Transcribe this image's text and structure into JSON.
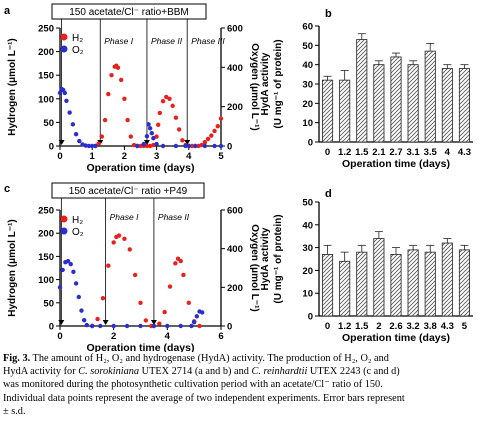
{
  "chart_data": [
    {
      "panel": "a",
      "type": "line",
      "banner": "150 acetate/Cl⁻ ratio+BBM",
      "xlabel": "Operation time (days)",
      "ylabel": "Hydrogen (μmol L⁻¹)",
      "ylabel2": "Oxygen (μmol L⁻¹)",
      "xlim": [
        0,
        5
      ],
      "ylim": [
        0,
        250
      ],
      "ylim2": [
        0,
        600
      ],
      "xticks": [
        "0",
        "1",
        "2",
        "3",
        "4",
        "5"
      ],
      "yticks": [
        "0",
        "50",
        "100",
        "150",
        "200",
        "250"
      ],
      "yticks2": [
        "0",
        "200",
        "400",
        "600"
      ],
      "phases": [
        {
          "x": 0.05,
          "label": ""
        },
        {
          "x": 1.25,
          "label": "Phase I"
        },
        {
          "x": 2.7,
          "label": "Phase II"
        },
        {
          "x": 3.95,
          "label": "Phase III"
        }
      ],
      "legend": [
        {
          "label": "H₂",
          "color": "#e8211c"
        },
        {
          "label": "O₂",
          "color": "#2a2fcc"
        }
      ],
      "series": [
        {
          "name": "H₂",
          "axis": "left",
          "color": "#e8211c",
          "x": [
            1.1,
            1.2,
            1.3,
            1.4,
            1.5,
            1.6,
            1.7,
            1.75,
            1.8,
            1.9,
            2.0,
            2.1,
            2.2,
            2.3,
            2.4,
            2.5,
            2.6,
            2.7,
            2.8,
            2.9,
            3.0,
            3.05,
            3.1,
            3.2,
            3.3,
            3.4,
            3.5,
            3.6,
            3.7,
            3.8,
            3.9,
            4.0,
            4.1,
            4.2,
            4.3,
            4.4,
            4.5,
            4.6,
            4.7,
            4.8,
            4.9,
            5.0
          ],
          "y": [
            0,
            5,
            20,
            55,
            110,
            150,
            168,
            170,
            166,
            140,
            100,
            55,
            20,
            2,
            0,
            0,
            0,
            0,
            0,
            2,
            20,
            45,
            70,
            95,
            104,
            100,
            85,
            60,
            35,
            12,
            2,
            0,
            0,
            0,
            0,
            2,
            8,
            15,
            22,
            32,
            42,
            58
          ]
        },
        {
          "name": "O₂",
          "axis": "right",
          "color": "#2a2fcc",
          "x": [
            0,
            0.05,
            0.1,
            0.15,
            0.2,
            0.3,
            0.4,
            0.5,
            0.6,
            0.7,
            0.8,
            0.9,
            1.0,
            1.1,
            2.4,
            2.6,
            2.7,
            2.75,
            2.8,
            2.85,
            2.9,
            3.0,
            3.2,
            3.6,
            3.9,
            4.0,
            4.2,
            4.5,
            4.8,
            5.0
          ],
          "y": [
            270,
            290,
            285,
            270,
            230,
            170,
            110,
            60,
            25,
            8,
            2,
            0,
            0,
            0,
            0,
            10,
            50,
            110,
            90,
            65,
            40,
            10,
            0,
            0,
            0,
            0,
            0,
            0,
            0,
            0
          ]
        }
      ]
    },
    {
      "panel": "b",
      "type": "bar",
      "xlabel": "Operation time (days)",
      "ylabel": "HydA activity",
      "ylabel_sub": "(U mg⁻¹ of protein)",
      "categories": [
        "0",
        "1.2",
        "1.5",
        "2.1",
        "2.7",
        "3.1",
        "3.5",
        "4",
        "4.3"
      ],
      "values": [
        32,
        32,
        53,
        40,
        44,
        40,
        47,
        38,
        38
      ],
      "errors": [
        2,
        5,
        3,
        2,
        2,
        2,
        4,
        2,
        2
      ],
      "ylim": [
        0,
        60
      ],
      "yticks": [
        "0",
        "10",
        "20",
        "30",
        "40",
        "50",
        "60"
      ]
    },
    {
      "panel": "c",
      "type": "line",
      "banner": "150 acetate/Cl⁻ ratio +P49",
      "xlabel": "Operation time (days)",
      "ylabel": "Hydrogen (μmol L⁻¹)",
      "ylabel2": "Oxygen (μmol L⁻¹)",
      "xlim": [
        0,
        6
      ],
      "ylim": [
        0,
        250
      ],
      "ylim2": [
        0,
        600
      ],
      "xticks": [
        "0",
        "2",
        "4",
        "6"
      ],
      "yticks": [
        "0",
        "50",
        "100",
        "150",
        "200",
        "250"
      ],
      "yticks2": [
        "0",
        "200",
        "400",
        "600"
      ],
      "phases": [
        {
          "x": 0.05,
          "label": ""
        },
        {
          "x": 1.7,
          "label": "Phase I"
        },
        {
          "x": 3.5,
          "label": "Phase II"
        }
      ],
      "legend": [
        {
          "label": "H₂",
          "color": "#e8211c"
        },
        {
          "label": "O₂",
          "color": "#2a2fcc"
        }
      ],
      "series": [
        {
          "name": "H₂",
          "axis": "left",
          "color": "#e8211c",
          "x": [
            1.2,
            1.4,
            1.6,
            1.8,
            2.0,
            2.1,
            2.2,
            2.4,
            2.6,
            2.8,
            3.0,
            3.2,
            3.4,
            3.5,
            3.7,
            3.9,
            4.1,
            4.3,
            4.4,
            4.5,
            4.6,
            4.8,
            5.0,
            5.2
          ],
          "y": [
            0,
            15,
            60,
            130,
            180,
            192,
            195,
            188,
            165,
            110,
            50,
            12,
            0,
            0,
            5,
            30,
            85,
            135,
            145,
            140,
            110,
            50,
            10,
            0
          ]
        },
        {
          "name": "O₂",
          "axis": "right",
          "color": "#2a2fcc",
          "x": [
            0,
            0.1,
            0.2,
            0.3,
            0.4,
            0.5,
            0.6,
            0.7,
            0.8,
            0.9,
            1.0,
            1.2,
            1.5,
            2.0,
            2.5,
            3.0,
            3.5,
            4.0,
            4.5,
            4.9,
            5.0,
            5.1,
            5.2,
            5.3
          ],
          "y": [
            200,
            290,
            330,
            335,
            320,
            280,
            220,
            150,
            80,
            30,
            5,
            0,
            0,
            0,
            0,
            0,
            0,
            0,
            0,
            0,
            20,
            50,
            75,
            70
          ]
        }
      ]
    },
    {
      "panel": "d",
      "type": "bar",
      "xlabel": "Operation time (days)",
      "ylabel": "HydA activity",
      "ylabel_sub": "(U mg⁻¹ of protein)",
      "categories": [
        "0",
        "1.2",
        "1.5",
        "2",
        "2.6",
        "3.2",
        "3.8",
        "4.3",
        "5"
      ],
      "values": [
        27,
        24,
        28,
        34,
        27,
        29,
        28,
        32,
        29
      ],
      "errors": [
        4,
        4,
        3,
        3,
        3,
        2,
        3,
        2,
        2
      ],
      "ylim": [
        0,
        50
      ],
      "yticks": [
        "0",
        "10",
        "20",
        "30",
        "40",
        "50"
      ]
    }
  ],
  "caption": {
    "label": "Fig. 3.",
    "lines": [
      [
        {
          "t": " The amount of H₂, O₂ and hydrogenase (HydA) activity. The production of H₂, O₂ and"
        }
      ],
      [
        {
          "t": "HydA activity for "
        },
        {
          "t": "C. sorokiniana",
          "i": true
        },
        {
          "t": " UTEX 2714 (a and b) and "
        },
        {
          "t": "C. reinhardtii",
          "i": true
        },
        {
          "t": " UTEX 2243 (c and d)"
        }
      ],
      [
        {
          "t": "was monitored during the photosynthetic cultivation period with an acetate/Cl⁻ ratio of 150."
        }
      ],
      [
        {
          "t": "Individual data points represent the average of two independent experiments. Error bars represent"
        }
      ],
      [
        {
          "t": "± s.d."
        }
      ]
    ]
  }
}
